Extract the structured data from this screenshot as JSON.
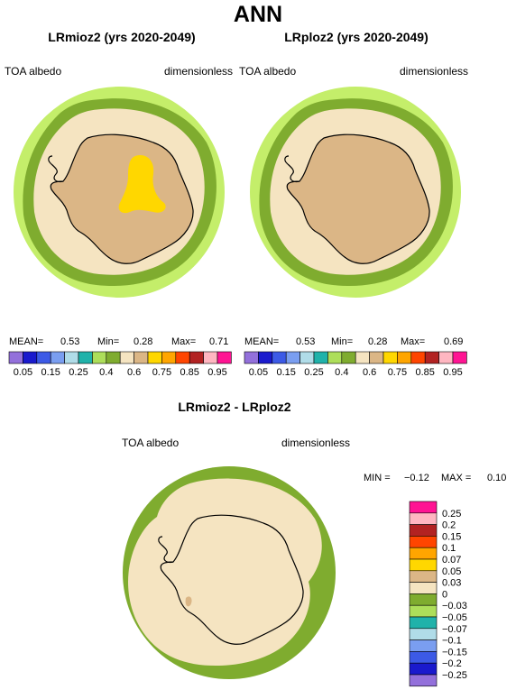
{
  "page_title": "ANN",
  "left_panel": {
    "title": "LRmioz2 (yrs 2020-2049)",
    "variable": "TOA albedo",
    "units": "dimensionless",
    "stats": {
      "mean_label": "MEAN=",
      "mean": "0.53",
      "min_label": "Min=",
      "min": "0.28",
      "max_label": "Max=",
      "max": "0.71"
    }
  },
  "right_panel": {
    "title": "LRploz2 (yrs 2020-2049)",
    "variable": "TOA albedo",
    "units": "dimensionless",
    "stats": {
      "mean_label": "MEAN=",
      "mean": "0.53",
      "min_label": "Min=",
      "min": "0.28",
      "max_label": "Max=",
      "max": "0.69"
    }
  },
  "abs_colorbar": {
    "colors": [
      "#9370db",
      "#1a1acd",
      "#3c5ae6",
      "#7a9ef0",
      "#b0dce8",
      "#20b2aa",
      "#adde5a",
      "#7fac2f",
      "#f5e4c1",
      "#dbb686",
      "#ffd700",
      "#ffa500",
      "#ff4500",
      "#b22222",
      "#ffb6c1",
      "#ff1493"
    ],
    "tick_labels": [
      "0.05",
      "0.15",
      "0.25",
      "0.4",
      "0.6",
      "0.75",
      "0.85",
      "0.95"
    ]
  },
  "diff_panel": {
    "title": "LRmioz2 - LRploz2",
    "variable": "TOA albedo",
    "units": "dimensionless",
    "stats": {
      "min_label": "MIN =",
      "min": "−0.12",
      "max_label": "MAX =",
      "max": "0.10"
    }
  },
  "diff_colorbar": {
    "colors": [
      "#9370db",
      "#1a1acd",
      "#3c5ae6",
      "#7a9ef0",
      "#b0dce8",
      "#20b2aa",
      "#adde5a",
      "#7fac2f",
      "#f5e4c1",
      "#dbb686",
      "#ffd700",
      "#ffa500",
      "#ff4500",
      "#b22222",
      "#ffb6c1",
      "#ff1493"
    ],
    "tick_labels": [
      "−0.25",
      "−0.2",
      "−0.15",
      "−0.1",
      "−0.07",
      "−0.05",
      "−0.03",
      "0",
      "0.03",
      "0.05",
      "0.07",
      "0.1",
      "0.15",
      "0.2",
      "0.25"
    ]
  },
  "colors": {
    "ocean_green": "#c4ee6a",
    "ice_ring": "#7fac2f",
    "sea_ice": "#f5e4c1",
    "antarctica": "#dbb686",
    "plateau": "#ffd700",
    "coast": "#000000"
  }
}
